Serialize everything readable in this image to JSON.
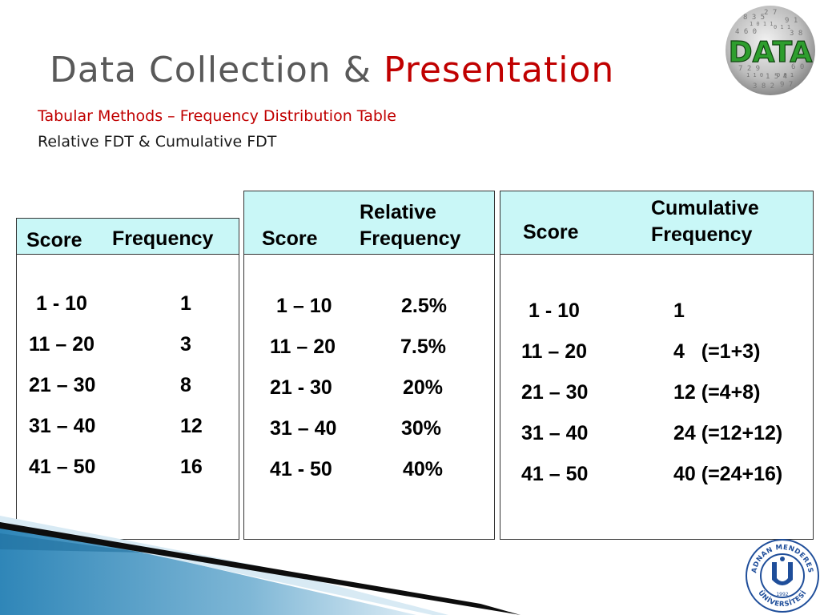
{
  "title": {
    "main": "Data Collection & ",
    "accent": "Presentation"
  },
  "subtitle": "Tabular Methods – Frequency Distribution Table",
  "subtitle2": "Relative FDT & Cumulative FDT",
  "table1": {
    "headers": {
      "score": "Score",
      "frequency": "Frequency"
    },
    "rows": [
      {
        "score": "1 - 10",
        "value": "1"
      },
      {
        "score": "11 – 20",
        "value": "3"
      },
      {
        "score": "21 – 30",
        "value": "8"
      },
      {
        "score": "31 – 40",
        "value": "12"
      },
      {
        "score": "41 – 50",
        "value": "16"
      }
    ]
  },
  "table2": {
    "headers": {
      "score": "Score",
      "relative_line1": "Relative",
      "relative_line2": "Frequency"
    },
    "rows": [
      {
        "score": "1 – 10",
        "value": "2.5%"
      },
      {
        "score": "11 – 20",
        "value": "7.5%"
      },
      {
        "score": "21 - 30",
        "value": "20%"
      },
      {
        "score": "31 – 40",
        "value": "30%"
      },
      {
        "score": "41 - 50",
        "value": "40%"
      }
    ]
  },
  "table3": {
    "headers": {
      "score": "Score",
      "cumulative_line1": "Cumulative",
      "cumulative_line2": "Frequency"
    },
    "rows": [
      {
        "score": "1 - 10",
        "value": "1"
      },
      {
        "score": "11 – 20",
        "value": "4   (=1+3)"
      },
      {
        "score": "21 – 30",
        "value": "12 (=4+8)"
      },
      {
        "score": "31 – 40",
        "value": "24 (=12+12)"
      },
      {
        "score": "41 – 50",
        "value": "40 (=24+16)"
      }
    ]
  },
  "logos": {
    "data_logo_text": "DATA",
    "university_arc_top": "ADNAN MENDERES",
    "university_arc_bottom": "ÜNİVERSİTESİ",
    "university_year": "1992"
  },
  "colors": {
    "title": "#595959",
    "accent": "#c00000",
    "header_fill": "#c9f7f7",
    "swoosh_dark": "#0d0d0d",
    "swoosh_blue": "#2f86b8",
    "logo_green": "#2e9e2e",
    "university_blue": "#1f4e9a"
  }
}
